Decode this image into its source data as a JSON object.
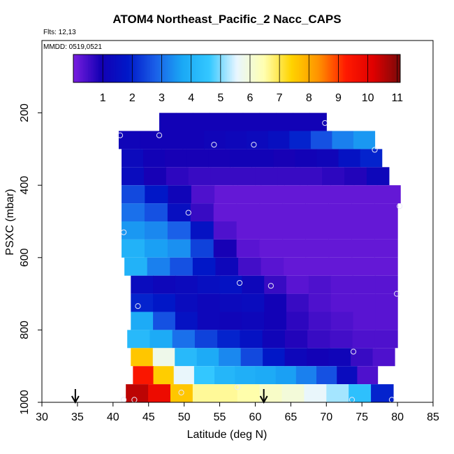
{
  "title": "ATOM4 Northeast_Pacific_2 Nacc_CAPS",
  "meta": {
    "flights": "Flts: 12,13",
    "dates": "MMDD: 0519,0521"
  },
  "chart_data": {
    "type": "heatmap",
    "xlabel": "Latitude (deg N)",
    "ylabel": "PSXC (mbar)",
    "xlim": [
      30,
      85
    ],
    "ylim": [
      1000,
      0
    ],
    "x_ticks": [
      30,
      35,
      40,
      45,
      50,
      55,
      60,
      65,
      70,
      75,
      80,
      85
    ],
    "y_ticks": [
      200,
      400,
      600,
      800,
      1000
    ],
    "colorbar": {
      "range": [
        0,
        11.1
      ],
      "ticks": [
        1,
        2,
        3,
        4,
        5,
        6,
        7,
        8,
        9,
        10,
        11
      ],
      "colors": [
        "#7a1ee0",
        "#1400b4",
        "#0018c8",
        "#1a5ee8",
        "#1aa8f5",
        "#34c8ff",
        "#e8f6ff",
        "#ffffb0",
        "#ffd400",
        "#ff9200",
        "#ff1a00",
        "#e00000",
        "#7a0a0a"
      ]
    },
    "rows": [
      {
        "p": 225,
        "x0": 46.5,
        "x1": 70.0,
        "values": [
          1.0,
          1.0,
          1.0,
          1.0,
          1.0,
          1.0,
          1.0,
          1.0,
          1.0,
          1.0
        ]
      },
      {
        "p": 275,
        "x0": 40.8,
        "x1": 76.8,
        "values": [
          1.1,
          1.0,
          1.0,
          1.0,
          1.1,
          1.2,
          1.3,
          1.5,
          2.0,
          2.6,
          3.2,
          3.5
        ]
      },
      {
        "p": 325,
        "x0": 41.2,
        "x1": 77.8,
        "values": [
          1.3,
          1.0,
          0.9,
          0.9,
          0.9,
          1.0,
          1.0,
          0.9,
          1.0,
          1.1,
          1.6,
          2.0
        ]
      },
      {
        "p": 375,
        "x0": 41.2,
        "x1": 78.8,
        "values": [
          1.4,
          0.9,
          0.7,
          0.6,
          0.6,
          0.6,
          0.6,
          0.6,
          0.6,
          0.7,
          0.8,
          1.2
        ]
      },
      {
        "p": 425,
        "x0": 41.2,
        "x1": 80.4,
        "values": [
          2.5,
          1.8,
          1.1,
          0.4,
          0.2,
          0.2,
          0.2,
          0.2,
          0.2,
          0.2,
          0.2,
          0.2
        ]
      },
      {
        "p": 475,
        "x0": 41.2,
        "x1": 80.0,
        "values": [
          3.0,
          2.6,
          1.5,
          0.6,
          0.2,
          0.2,
          0.2,
          0.2,
          0.2,
          0.2,
          0.2,
          0.2
        ]
      },
      {
        "p": 525,
        "x0": 41.2,
        "x1": 80.0,
        "values": [
          3.5,
          3.3,
          2.8,
          1.6,
          0.4,
          0.2,
          0.2,
          0.2,
          0.2,
          0.2,
          0.2,
          0.2
        ]
      },
      {
        "p": 575,
        "x0": 41.2,
        "x1": 80.0,
        "values": [
          4.0,
          3.6,
          3.4,
          2.4,
          0.9,
          0.3,
          0.2,
          0.2,
          0.2,
          0.2,
          0.2,
          0.2
        ]
      },
      {
        "p": 625,
        "x0": 41.6,
        "x1": 80.0,
        "values": [
          4.0,
          3.2,
          2.6,
          1.8,
          1.2,
          0.5,
          0.3,
          0.2,
          0.2,
          0.2,
          0.2,
          0.2
        ]
      },
      {
        "p": 675,
        "x0": 42.5,
        "x1": 80.0,
        "values": [
          1.4,
          1.2,
          1.3,
          1.5,
          1.6,
          1.2,
          0.6,
          0.3,
          0.4,
          0.3,
          0.3,
          0.3
        ]
      },
      {
        "p": 725,
        "x0": 42.5,
        "x1": 80.0,
        "values": [
          2.0,
          1.8,
          1.4,
          1.2,
          1.3,
          1.4,
          1.0,
          0.6,
          0.4,
          0.3,
          0.3,
          0.3
        ]
      },
      {
        "p": 775,
        "x0": 42.5,
        "x1": 80.0,
        "values": [
          3.8,
          2.6,
          1.6,
          1.2,
          1.1,
          1.2,
          1.0,
          0.7,
          0.5,
          0.4,
          0.3,
          0.3
        ]
      },
      {
        "p": 825,
        "x0": 42.0,
        "x1": 80.0,
        "values": [
          4.2,
          3.8,
          3.0,
          2.4,
          2.0,
          1.6,
          1.1,
          0.8,
          0.6,
          0.5,
          0.4,
          0.4
        ]
      },
      {
        "p": 875,
        "x0": 42.5,
        "x1": 79.6,
        "values": [
          7.6,
          5.8,
          4.2,
          3.8,
          3.3,
          2.5,
          1.8,
          1.2,
          1.0,
          1.1,
          0.6,
          0.4
        ]
      },
      {
        "p": 925,
        "x0": 42.8,
        "x1": 77.2,
        "values": [
          9.4,
          7.5,
          5.6,
          4.6,
          4.1,
          3.9,
          3.8,
          3.6,
          3.2,
          2.6,
          1.4,
          0.4
        ]
      },
      {
        "p": 975,
        "x0": 41.8,
        "x1": 79.4,
        "values": [
          10.5,
          9.8,
          7.6,
          6.6,
          6.6,
          6.5,
          6.2,
          6.0,
          5.6,
          5.2,
          4.4,
          2.0
        ]
      }
    ],
    "points": [
      {
        "x": 41.0,
        "p": 262
      },
      {
        "x": 46.5,
        "p": 262
      },
      {
        "x": 54.2,
        "p": 288
      },
      {
        "x": 59.8,
        "p": 288
      },
      {
        "x": 69.8,
        "p": 228
      },
      {
        "x": 76.8,
        "p": 302
      },
      {
        "x": 80.3,
        "p": 458
      },
      {
        "x": 41.5,
        "p": 530
      },
      {
        "x": 50.6,
        "p": 476
      },
      {
        "x": 57.8,
        "p": 670
      },
      {
        "x": 62.2,
        "p": 678
      },
      {
        "x": 43.5,
        "p": 734
      },
      {
        "x": 79.9,
        "p": 700
      },
      {
        "x": 73.8,
        "p": 860
      },
      {
        "x": 41.5,
        "p": 993
      },
      {
        "x": 43.0,
        "p": 993
      },
      {
        "x": 49.6,
        "p": 973
      },
      {
        "x": 73.6,
        "p": 993
      },
      {
        "x": 79.2,
        "p": 993
      },
      {
        "x": 57.5,
        "p": 958
      }
    ],
    "arrows": [
      34.7,
      61.2
    ]
  }
}
